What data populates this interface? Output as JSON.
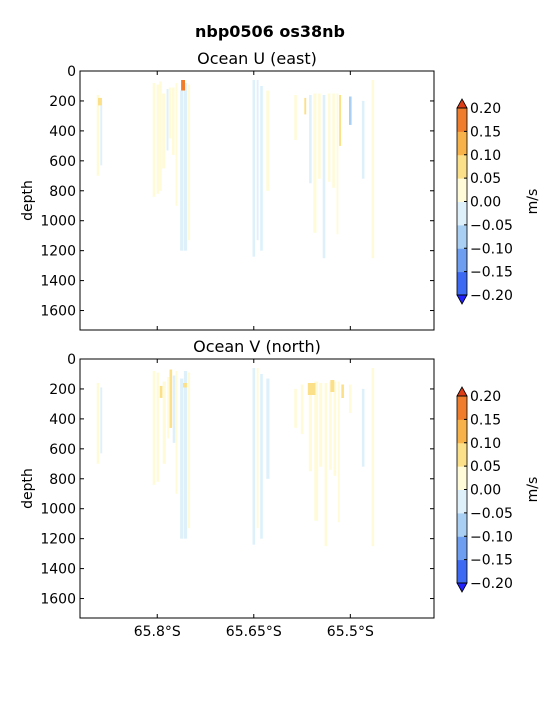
{
  "figure": {
    "suptitle": "nbp0506 os38nb"
  },
  "colors": {
    "axes_bg": "#ffffff",
    "frame": "#000000"
  },
  "colorbar_levels": [
    {
      "lo": -0.25,
      "hi": -0.2,
      "color": "#2222ff"
    },
    {
      "lo": -0.2,
      "hi": -0.15,
      "color": "#3d6af2"
    },
    {
      "lo": -0.15,
      "hi": -0.1,
      "color": "#6e9ef0"
    },
    {
      "lo": -0.1,
      "hi": -0.05,
      "color": "#a9d0f3"
    },
    {
      "lo": -0.05,
      "hi": 0.0,
      "color": "#def1fb"
    },
    {
      "lo": 0.0,
      "hi": 0.05,
      "color": "#fffbd8"
    },
    {
      "lo": 0.05,
      "hi": 0.1,
      "color": "#fce089"
    },
    {
      "lo": 0.1,
      "hi": 0.15,
      "color": "#f8b24a"
    },
    {
      "lo": 0.15,
      "hi": 0.2,
      "color": "#f07d2c"
    },
    {
      "lo": 0.2,
      "hi": 0.25,
      "color": "#dd3d14"
    }
  ],
  "chart_data": [
    {
      "type": "heatmap",
      "title": "Ocean U (east)",
      "xlabel": "",
      "ylabel": "depth",
      "xlim": [
        -65.92,
        -65.37
      ],
      "ylim": [
        1730,
        0
      ],
      "yticks": [
        0,
        200,
        400,
        600,
        800,
        1000,
        1200,
        1400,
        1600
      ],
      "xticks": [
        -65.8,
        -65.65,
        -65.5
      ],
      "xtick_labels": [],
      "colorbar": {
        "label": "m/s",
        "ticks": [
          "0.20",
          "0.15",
          "0.10",
          "0.05",
          "0.00",
          "−0.05",
          "−0.10",
          "−0.15",
          "−0.20"
        ],
        "range": [
          -0.2,
          0.2
        ],
        "extend": "both"
      },
      "columns": [
        {
          "lon": -65.892,
          "w": 0.004,
          "top": 160,
          "bottom": 700,
          "v": 0.0
        },
        {
          "lon": -65.887,
          "w": 0.003,
          "top": 190,
          "bottom": 630,
          "v": -0.03
        },
        {
          "lon": -65.889,
          "w": 0.006,
          "top": 180,
          "bottom": 230,
          "v": 0.07
        },
        {
          "lon": -65.805,
          "w": 0.004,
          "top": 80,
          "bottom": 840,
          "v": 0.02
        },
        {
          "lon": -65.799,
          "w": 0.004,
          "top": 90,
          "bottom": 820,
          "v": 0.04
        },
        {
          "lon": -65.795,
          "w": 0.004,
          "top": 70,
          "bottom": 800,
          "v": 0.01
        },
        {
          "lon": -65.79,
          "w": 0.005,
          "top": 150,
          "bottom": 650,
          "v": 0.03
        },
        {
          "lon": -65.784,
          "w": 0.003,
          "top": 120,
          "bottom": 530,
          "v": -0.02
        },
        {
          "lon": -65.78,
          "w": 0.004,
          "top": 110,
          "bottom": 450,
          "v": 0.01
        },
        {
          "lon": -65.775,
          "w": 0.004,
          "top": 110,
          "bottom": 560,
          "v": 0.04
        },
        {
          "lon": -65.77,
          "w": 0.003,
          "top": 80,
          "bottom": 900,
          "v": 0.0
        },
        {
          "lon": -65.762,
          "w": 0.005,
          "top": 130,
          "bottom": 1200,
          "v": -0.04
        },
        {
          "lon": -65.756,
          "w": 0.005,
          "top": 80,
          "bottom": 1200,
          "v": -0.03
        },
        {
          "lon": -65.751,
          "w": 0.004,
          "top": 90,
          "bottom": 1130,
          "v": 0.02
        },
        {
          "lon": -65.76,
          "w": 0.006,
          "top": 60,
          "bottom": 130,
          "v": 0.17
        },
        {
          "lon": -65.65,
          "w": 0.004,
          "top": 60,
          "bottom": 1240,
          "v": -0.03
        },
        {
          "lon": -65.644,
          "w": 0.003,
          "top": 60,
          "bottom": 1130,
          "v": -0.02
        },
        {
          "lon": -65.638,
          "w": 0.004,
          "top": 100,
          "bottom": 1200,
          "v": -0.04
        },
        {
          "lon": -65.628,
          "w": 0.005,
          "top": 130,
          "bottom": 800,
          "v": 0.02
        },
        {
          "lon": -65.585,
          "w": 0.004,
          "top": 160,
          "bottom": 460,
          "v": 0.03
        },
        {
          "lon": -65.57,
          "w": 0.003,
          "top": 180,
          "bottom": 290,
          "v": 0.06
        },
        {
          "lon": -65.562,
          "w": 0.004,
          "top": 160,
          "bottom": 750,
          "v": -0.03
        },
        {
          "lon": -65.555,
          "w": 0.005,
          "top": 150,
          "bottom": 1080,
          "v": 0.02
        },
        {
          "lon": -65.548,
          "w": 0.004,
          "top": 150,
          "bottom": 720,
          "v": 0.0
        },
        {
          "lon": -65.541,
          "w": 0.004,
          "top": 160,
          "bottom": 1250,
          "v": -0.04
        },
        {
          "lon": -65.533,
          "w": 0.004,
          "top": 150,
          "bottom": 740,
          "v": 0.03
        },
        {
          "lon": -65.526,
          "w": 0.004,
          "top": 150,
          "bottom": 780,
          "v": 0.01
        },
        {
          "lon": -65.52,
          "w": 0.003,
          "top": 150,
          "bottom": 1090,
          "v": 0.0
        },
        {
          "lon": -65.516,
          "w": 0.003,
          "top": 160,
          "bottom": 500,
          "v": 0.05
        },
        {
          "lon": -65.5,
          "w": 0.004,
          "top": 170,
          "bottom": 360,
          "v": -0.06
        },
        {
          "lon": -65.48,
          "w": 0.004,
          "top": 200,
          "bottom": 720,
          "v": -0.04
        },
        {
          "lon": -65.465,
          "w": 0.004,
          "top": 60,
          "bottom": 1250,
          "v": 0.02
        }
      ]
    },
    {
      "type": "heatmap",
      "title": "Ocean V (north)",
      "xlabel": "",
      "ylabel": "depth",
      "xlim": [
        -65.92,
        -65.37
      ],
      "ylim": [
        1730,
        0
      ],
      "yticks": [
        0,
        200,
        400,
        600,
        800,
        1000,
        1200,
        1400,
        1600
      ],
      "xticks": [
        -65.8,
        -65.65,
        -65.5
      ],
      "xtick_labels": [
        "65.8°S",
        "65.65°S",
        "65.5°S"
      ],
      "colorbar": {
        "label": "m/s",
        "ticks": [
          "0.20",
          "0.15",
          "0.10",
          "0.05",
          "0.00",
          "−0.05",
          "−0.10",
          "−0.15",
          "−0.20"
        ],
        "range": [
          -0.2,
          0.2
        ],
        "extend": "both"
      },
      "columns": [
        {
          "lon": -65.892,
          "w": 0.004,
          "top": 160,
          "bottom": 700,
          "v": 0.02
        },
        {
          "lon": -65.887,
          "w": 0.003,
          "top": 190,
          "bottom": 630,
          "v": -0.03
        },
        {
          "lon": -65.805,
          "w": 0.004,
          "top": 80,
          "bottom": 840,
          "v": 0.03
        },
        {
          "lon": -65.799,
          "w": 0.004,
          "top": 90,
          "bottom": 820,
          "v": 0.02
        },
        {
          "lon": -65.794,
          "w": 0.004,
          "top": 180,
          "bottom": 260,
          "v": 0.08
        },
        {
          "lon": -65.789,
          "w": 0.005,
          "top": 150,
          "bottom": 700,
          "v": 0.02
        },
        {
          "lon": -65.783,
          "w": 0.003,
          "top": 120,
          "bottom": 530,
          "v": 0.0
        },
        {
          "lon": -65.779,
          "w": 0.004,
          "top": 70,
          "bottom": 460,
          "v": 0.06
        },
        {
          "lon": -65.774,
          "w": 0.004,
          "top": 110,
          "bottom": 560,
          "v": -0.02
        },
        {
          "lon": -65.77,
          "w": 0.003,
          "top": 80,
          "bottom": 900,
          "v": 0.01
        },
        {
          "lon": -65.762,
          "w": 0.005,
          "top": 130,
          "bottom": 1200,
          "v": -0.04
        },
        {
          "lon": -65.756,
          "w": 0.005,
          "top": 80,
          "bottom": 1200,
          "v": -0.03
        },
        {
          "lon": -65.751,
          "w": 0.004,
          "top": 90,
          "bottom": 1130,
          "v": 0.0
        },
        {
          "lon": -65.757,
          "w": 0.006,
          "top": 160,
          "bottom": 190,
          "v": 0.08
        },
        {
          "lon": -65.65,
          "w": 0.004,
          "top": 60,
          "bottom": 1240,
          "v": -0.03
        },
        {
          "lon": -65.644,
          "w": 0.003,
          "top": 60,
          "bottom": 1130,
          "v": 0.01
        },
        {
          "lon": -65.638,
          "w": 0.004,
          "top": 100,
          "bottom": 1200,
          "v": -0.04
        },
        {
          "lon": -65.628,
          "w": 0.005,
          "top": 130,
          "bottom": 800,
          "v": -0.02
        },
        {
          "lon": -65.585,
          "w": 0.004,
          "top": 200,
          "bottom": 460,
          "v": 0.03
        },
        {
          "lon": -65.575,
          "w": 0.004,
          "top": 170,
          "bottom": 500,
          "v": 0.0
        },
        {
          "lon": -65.562,
          "w": 0.005,
          "top": 160,
          "bottom": 750,
          "v": 0.02
        },
        {
          "lon": -65.553,
          "w": 0.006,
          "top": 150,
          "bottom": 1080,
          "v": 0.03
        },
        {
          "lon": -65.546,
          "w": 0.005,
          "top": 160,
          "bottom": 720,
          "v": 0.01
        },
        {
          "lon": -65.538,
          "w": 0.004,
          "top": 160,
          "bottom": 1250,
          "v": 0.02
        },
        {
          "lon": -65.531,
          "w": 0.004,
          "top": 150,
          "bottom": 740,
          "v": 0.03
        },
        {
          "lon": -65.524,
          "w": 0.004,
          "top": 150,
          "bottom": 780,
          "v": 0.02
        },
        {
          "lon": -65.518,
          "w": 0.003,
          "top": 150,
          "bottom": 1090,
          "v": 0.0
        },
        {
          "lon": -65.56,
          "w": 0.012,
          "top": 160,
          "bottom": 240,
          "v": 0.08
        },
        {
          "lon": -65.528,
          "w": 0.006,
          "top": 140,
          "bottom": 220,
          "v": 0.08
        },
        {
          "lon": -65.512,
          "w": 0.004,
          "top": 170,
          "bottom": 260,
          "v": 0.08
        },
        {
          "lon": -65.5,
          "w": 0.004,
          "top": 170,
          "bottom": 360,
          "v": 0.02
        },
        {
          "lon": -65.48,
          "w": 0.004,
          "top": 200,
          "bottom": 720,
          "v": -0.03
        },
        {
          "lon": -65.465,
          "w": 0.004,
          "top": 60,
          "bottom": 1250,
          "v": 0.01
        }
      ]
    }
  ]
}
